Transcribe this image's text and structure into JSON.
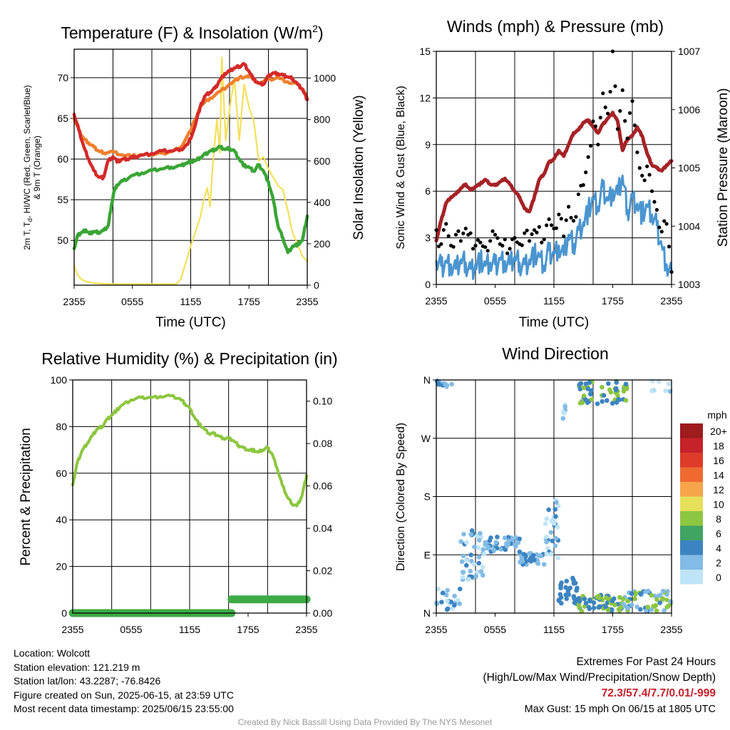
{
  "charts": {
    "time_ticks": [
      "2355",
      "0555",
      "1155",
      "1755",
      "2355"
    ],
    "time_axis_label": "Time (UTC)"
  },
  "chart_data": [
    {
      "id": "temperature",
      "type": "line",
      "title": "Temperature (F) & Insolation (W/m",
      "title_sup": "2",
      "title_close": ")",
      "xlabel": "Time (UTC)",
      "ylabel_lines": [
        "2m T, T",
        "d",
        ", HI/WC (Red, Green, Scarlet/Blue)",
        "& 9m T (Orange)"
      ],
      "ylabel_right": "Solar Insolation (Yellow)",
      "x_ticks": [
        "2355",
        "0555",
        "1155",
        "1755",
        "2355"
      ],
      "x_range_hours": [
        0,
        24
      ],
      "ylim": [
        44.5,
        73.5
      ],
      "y_ticks": [
        50,
        55,
        60,
        65,
        70
      ],
      "ylim_right": [
        0,
        1140
      ],
      "y_ticks_right": [
        0,
        200,
        400,
        600,
        800,
        1000
      ],
      "grid": true,
      "series": [
        {
          "color": "#f07f2d",
          "x": [
            0,
            0.5,
            1,
            1.5,
            2,
            2.5,
            3,
            4,
            5,
            6,
            7,
            8,
            9,
            10,
            11,
            12,
            13,
            14,
            15,
            16,
            17,
            18,
            19,
            20,
            21,
            22,
            23,
            23.6,
            24
          ],
          "y": [
            65,
            63.5,
            62.5,
            62,
            61.5,
            61,
            60.8,
            60.9,
            60.5,
            60.4,
            60.5,
            60.6,
            60.7,
            60.9,
            61.5,
            63.5,
            66.5,
            67.5,
            68.3,
            69.2,
            70,
            70.2,
            69.3,
            69.8,
            70,
            69.5,
            69.2,
            68.5,
            67.5
          ]
        },
        {
          "color": "#d42a2a",
          "x": [
            0,
            0.5,
            1,
            1.5,
            2,
            2.5,
            3,
            3.5,
            4,
            4.5,
            5,
            5.5,
            6,
            7,
            8,
            9,
            10,
            11,
            11.7,
            12.3,
            13,
            13.5,
            14,
            14.5,
            15,
            15.5,
            16,
            16.5,
            17,
            17.5,
            18,
            18.5,
            19,
            19.5,
            20,
            20.5,
            21,
            21.5,
            22,
            22.5,
            23,
            23.5,
            24
          ],
          "y": [
            65.5,
            63.5,
            61.5,
            60,
            58.6,
            57.8,
            57.7,
            59.8,
            60.3,
            59.7,
            60,
            60,
            60.2,
            60.5,
            60.7,
            61,
            61,
            61.2,
            61.8,
            63.5,
            66.5,
            67.8,
            68.2,
            68.7,
            69.7,
            70.5,
            70.8,
            71.2,
            71.4,
            71.7,
            70.8,
            69.8,
            69.3,
            69.2,
            70.2,
            70.6,
            70.5,
            70.3,
            70.1,
            69.9,
            69.2,
            68.6,
            67.3
          ]
        },
        {
          "color": "#39a535",
          "x": [
            0,
            0.4,
            0.8,
            1.2,
            1.6,
            2,
            2.5,
            3,
            3.5,
            3.8,
            4.1,
            4.4,
            5,
            6,
            7,
            8,
            9,
            10,
            11,
            11.5,
            12,
            12.5,
            13,
            13.5,
            14,
            14.5,
            15,
            15.5,
            16,
            16.5,
            17,
            17.5,
            18,
            18.5,
            19,
            19.5,
            20,
            20.5,
            21,
            21.5,
            22,
            22.5,
            23,
            23.5,
            24
          ],
          "y": [
            49,
            50.7,
            51,
            51.3,
            50.8,
            51.1,
            51,
            51.2,
            51.8,
            54,
            56,
            56.8,
            57.3,
            58,
            58.3,
            58.6,
            58.8,
            59,
            59.2,
            59.5,
            59.7,
            59.8,
            60.2,
            60.6,
            61,
            61.2,
            61.5,
            61.2,
            61.3,
            61,
            60,
            59.2,
            59,
            58.5,
            59.3,
            58.5,
            57.2,
            55,
            51.7,
            50.3,
            48.5,
            49.3,
            49.5,
            50,
            53
          ]
        },
        {
          "color": "#f5e05a",
          "axis": "right",
          "x": [
            0,
            0.3,
            0.7,
            1.2,
            2,
            3,
            4,
            5,
            6,
            7,
            8,
            9,
            10,
            10.5,
            11,
            11.3,
            11.7,
            12,
            12.5,
            13,
            13.3,
            13.7,
            14,
            14.3,
            14.7,
            15,
            15.2,
            15.6,
            16,
            16.5,
            17,
            17.5,
            18,
            18.5,
            19,
            19.5,
            20,
            20.5,
            21,
            21.5,
            22,
            22.5,
            23,
            23.5,
            24
          ],
          "y": [
            95,
            55,
            30,
            18,
            10,
            7,
            5,
            5,
            5,
            5,
            5,
            5,
            5,
            5,
            30,
            80,
            140,
            190,
            260,
            330,
            400,
            470,
            380,
            600,
            800,
            640,
            1100,
            700,
            850,
            1000,
            700,
            970,
            860,
            790,
            600,
            620,
            560,
            520,
            480,
            460,
            360,
            250,
            200,
            140,
            115
          ]
        }
      ]
    },
    {
      "id": "winds",
      "type": "line",
      "title": "Winds (mph) & Pressure (mb)",
      "xlabel": "Time (UTC)",
      "ylabel": "Sonic Wind & Gust (Blue, Black)",
      "ylabel_right": "Station Pressure (Maroon)",
      "x_ticks": [
        "2355",
        "0555",
        "1155",
        "1755",
        "2355"
      ],
      "x_range_hours": [
        0,
        24
      ],
      "ylim": [
        0,
        15
      ],
      "y_ticks": [
        0,
        3,
        6,
        9,
        12,
        15
      ],
      "ylim_right": [
        1003,
        1007
      ],
      "y_ticks_right": [
        1003,
        1004,
        1005,
        1006,
        1007
      ],
      "grid": true,
      "series": [
        {
          "name": "Sonic Wind",
          "color": "#4a95d0",
          "x": [
            0,
            0.5,
            1,
            1.5,
            2,
            2.5,
            3,
            3.5,
            4,
            4.5,
            5,
            5.5,
            6,
            6.5,
            7,
            7.5,
            8,
            8.5,
            9,
            9.5,
            10,
            10.5,
            11,
            11.5,
            12,
            12.5,
            13,
            13.5,
            14,
            14.5,
            15,
            15.5,
            16,
            16.5,
            17,
            17.5,
            18,
            18.5,
            19,
            19.5,
            20,
            20.5,
            21,
            21.5,
            22,
            22.5,
            23,
            23.5,
            24
          ],
          "y": [
            1.5,
            1.2,
            1.5,
            1.3,
            1.0,
            1.6,
            1.4,
            1.0,
            1.3,
            1.6,
            1.2,
            1.4,
            1.3,
            1.7,
            1.5,
            1.3,
            1.8,
            1.4,
            1.3,
            1.6,
            2.0,
            1.8,
            1.2,
            2.2,
            2.0,
            2.5,
            1.9,
            3.2,
            2.6,
            3.5,
            4.0,
            4.8,
            5.5,
            5.0,
            6.3,
            5.4,
            6.1,
            5.8,
            7.0,
            4.8,
            5.6,
            5.2,
            4.6,
            5.0,
            4.5,
            3.8,
            2.5,
            1.3,
            0.8
          ]
        },
        {
          "name": "Gust",
          "color": "#000000",
          "x": [
            0,
            0.5,
            1,
            1.5,
            2,
            2.5,
            3,
            3.5,
            4,
            4.5,
            5,
            5.5,
            6,
            6.5,
            7,
            7.5,
            8,
            8.5,
            9,
            9.5,
            10,
            10.5,
            11,
            11.5,
            12,
            12.5,
            13,
            13.5,
            14,
            14.5,
            15,
            15.5,
            16,
            16.5,
            17,
            17.5,
            18,
            18.5,
            19,
            19.5,
            20,
            20.5,
            21,
            21.5,
            22,
            22.5,
            23,
            23.5,
            24
          ],
          "y": [
            3.5,
            2.6,
            3.9,
            2.5,
            3.2,
            2.8,
            3.6,
            3.3,
            2.5,
            2.7,
            2.4,
            2.8,
            3.2,
            2.6,
            2.9,
            2.3,
            3.0,
            2.6,
            3.3,
            2.8,
            3.5,
            3.7,
            2.9,
            4.2,
            3.6,
            4.5,
            3.1,
            5.0,
            4.1,
            5.8,
            6.4,
            8.2,
            10.5,
            9.0,
            12.3,
            11.0,
            15.0,
            10.0,
            12.5,
            9.4,
            11.8,
            8.5,
            7.0,
            7.6,
            6.0,
            4.8,
            3.4,
            3.9,
            0.8
          ]
        },
        {
          "name": "Station Pressure",
          "color": "#a52226",
          "axis": "right",
          "x": [
            0,
            0.5,
            1,
            1.5,
            2,
            2.5,
            3,
            3.5,
            4,
            4.5,
            5,
            5.5,
            6,
            6.5,
            7,
            7.5,
            8,
            8.5,
            9,
            9.5,
            10,
            10.5,
            11,
            11.5,
            12,
            12.5,
            13,
            13.5,
            14,
            14.5,
            15,
            15.5,
            16,
            16.5,
            17,
            17.5,
            18,
            18.5,
            19,
            19.5,
            20,
            20.5,
            21,
            21.5,
            22,
            22.5,
            23,
            23.5,
            24
          ],
          "y": [
            1003.75,
            1004.1,
            1004.4,
            1004.5,
            1004.55,
            1004.65,
            1004.72,
            1004.62,
            1004.68,
            1004.73,
            1004.8,
            1004.72,
            1004.7,
            1004.76,
            1004.82,
            1004.72,
            1004.6,
            1004.5,
            1004.3,
            1004.25,
            1004.5,
            1004.8,
            1004.9,
            1005.1,
            1005.15,
            1005.3,
            1005.2,
            1005.4,
            1005.6,
            1005.65,
            1005.78,
            1005.82,
            1005.7,
            1005.6,
            1005.75,
            1005.85,
            1005.95,
            1005.8,
            1005.3,
            1005.5,
            1005.55,
            1005.7,
            1005.55,
            1005.25,
            1005.05,
            1005.0,
            1004.95,
            1005.05,
            1005.12
          ]
        }
      ]
    },
    {
      "id": "humidity",
      "type": "line",
      "title": "Relative Humidity (%) & Precipitation (in)",
      "ylabel": "Percent & Precipitation",
      "x_ticks": [
        "2355",
        "0555",
        "1155",
        "1755",
        "2355"
      ],
      "x_range_hours": [
        0,
        24
      ],
      "ylim": [
        0,
        100
      ],
      "y_ticks": [
        0,
        20,
        40,
        60,
        80,
        100
      ],
      "ylim_right": [
        0,
        0.11
      ],
      "y_ticks_right": [
        "0.00",
        "0.02",
        "0.04",
        "0.06",
        "0.08",
        "0.10"
      ],
      "grid": true,
      "series": [
        {
          "name": "Relative Humidity",
          "color": "#8cc63f",
          "x": [
            0,
            0.5,
            1,
            1.5,
            2,
            2.5,
            3,
            3.5,
            4,
            4.5,
            5,
            6,
            7,
            8,
            9,
            10,
            11,
            11.5,
            12,
            12.5,
            13,
            13.5,
            14,
            14.5,
            15,
            15.5,
            16,
            16.5,
            17,
            17.5,
            18,
            18.5,
            19,
            19.5,
            20,
            20.5,
            21,
            21.5,
            22,
            22.5,
            23,
            23.5,
            24
          ],
          "y": [
            55,
            65,
            70,
            73,
            76,
            79,
            80,
            83,
            85,
            87,
            89,
            91.5,
            92.5,
            92.5,
            93,
            93.2,
            92,
            90,
            88,
            84,
            81,
            79,
            77,
            77,
            76,
            75,
            75,
            74,
            72,
            71,
            70,
            70,
            69,
            70,
            71,
            68,
            62,
            55,
            50,
            47,
            46,
            50,
            59
          ]
        },
        {
          "name": "Precipitation",
          "color": "#3daa45",
          "axis": "right",
          "x": [
            0,
            16.3,
            16.3,
            24
          ],
          "y": [
            0,
            0,
            0.0065,
            0.0065
          ]
        }
      ]
    },
    {
      "id": "wind-direction",
      "type": "scatter",
      "title": "Wind Direction",
      "ylabel": "Direction (Colored By Speed)",
      "x_ticks": [
        "2355",
        "0555",
        "1155",
        "1755",
        "2355"
      ],
      "x_range_hours": [
        0,
        24
      ],
      "y_ticks": [
        "N",
        "E",
        "S",
        "W",
        "N"
      ],
      "ylim_degrees": [
        0,
        360
      ],
      "grid": true,
      "legend_title": "mph",
      "legend_labels": [
        "20+",
        "18",
        "16",
        "14",
        "12",
        "10",
        "8",
        "6",
        "4",
        "2",
        "0"
      ],
      "legend_colors": [
        "#9e1b1e",
        "#c5222a",
        "#de3b2a",
        "#ee6a31",
        "#f6a54a",
        "#e6e05a",
        "#8dc641",
        "#40a463",
        "#3c84c1",
        "#82bbe5",
        "#bfe4f7"
      ],
      "groups": [
        {
          "x0": 0.0,
          "x1": 1.6,
          "y0": 349,
          "y1": 359,
          "n": 12,
          "colors": [
            1,
            2
          ]
        },
        {
          "x0": 0.0,
          "x1": 2.5,
          "y0": 2,
          "y1": 40,
          "n": 22,
          "colors": [
            0,
            1,
            2
          ]
        },
        {
          "x0": 2.5,
          "x1": 5.0,
          "y0": 50,
          "y1": 130,
          "n": 46,
          "colors": [
            0,
            1,
            2
          ]
        },
        {
          "x0": 5.0,
          "x1": 8.5,
          "y0": 95,
          "y1": 118,
          "n": 40,
          "colors": [
            1,
            2
          ]
        },
        {
          "x0": 8.5,
          "x1": 11.0,
          "y0": 75,
          "y1": 95,
          "n": 40,
          "colors": [
            1,
            2
          ]
        },
        {
          "x0": 11.0,
          "x1": 12.5,
          "y0": 85,
          "y1": 175,
          "n": 30,
          "colors": [
            0,
            1,
            2
          ]
        },
        {
          "x0": 12.5,
          "x1": 14.5,
          "y0": 10,
          "y1": 55,
          "n": 30,
          "colors": [
            2
          ]
        },
        {
          "x0": 14.5,
          "x1": 19.0,
          "y0": 3,
          "y1": 28,
          "n": 60,
          "colors": [
            2,
            3
          ]
        },
        {
          "x0": 19.0,
          "x1": 24.0,
          "y0": 3,
          "y1": 35,
          "n": 55,
          "colors": [
            1,
            2,
            3
          ]
        },
        {
          "x0": 14.5,
          "x1": 19.5,
          "y0": 323,
          "y1": 359,
          "n": 55,
          "colors": [
            2,
            3
          ]
        },
        {
          "x0": 12.8,
          "x1": 13.3,
          "y0": 300,
          "y1": 330,
          "n": 6,
          "colors": [
            0,
            1
          ]
        },
        {
          "x0": 22.0,
          "x1": 24.0,
          "y0": 332,
          "y1": 359,
          "n": 8,
          "colors": [
            0,
            1
          ]
        }
      ]
    }
  ],
  "station_info": {
    "location": "Location: Wolcott",
    "elevation": "Station elevation: 121.219 m",
    "latlon": "Station lat/lon: 43.2287; -76.8426",
    "created": "Figure created on Sun, 2025-06-15, at 23:59 UTC",
    "recent": "Most recent data timestamp: 2025/06/15 23:55:00"
  },
  "extremes": {
    "title": "Extremes For Past 24 Hours",
    "subtitle": "(High/Low/Max Wind/Precipitation/Snow Depth)",
    "values": "72.3/57.4/7.7/0.01/-999",
    "max_gust": "Max Gust: 15 mph On 06/15 at 1805 UTC",
    "value_color": "#c4212b"
  },
  "credit": "Created By Nick Bassill Using Data Provided By The NYS Mesonet"
}
